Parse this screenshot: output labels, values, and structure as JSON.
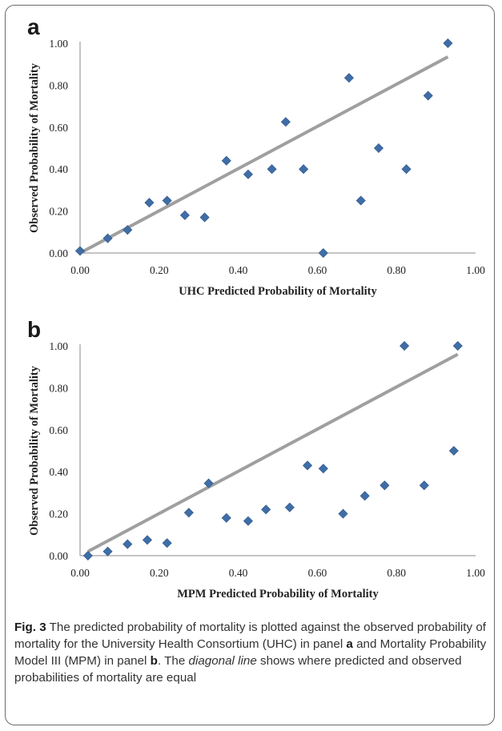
{
  "chart_data": [
    {
      "type": "scatter",
      "panel_label": "a",
      "xlabel": "UHC Predicted Probability of Mortality",
      "ylabel": "Observed Probability of Mortality",
      "xlim": [
        0,
        1
      ],
      "ylim": [
        0,
        1
      ],
      "x_ticks": [
        "0.00",
        "0.20",
        "0.40",
        "0.60",
        "0.80",
        "1.00"
      ],
      "y_ticks": [
        "0.00",
        "0.20",
        "0.40",
        "0.60",
        "0.80",
        "1.00"
      ],
      "grid": false,
      "marker_color": "#3f6ea6",
      "fit_line_color": "#9f9f9f",
      "fit_line": {
        "x": [
          0.0,
          0.93
        ],
        "y": [
          0.0,
          0.935
        ]
      },
      "points": [
        {
          "x": 0.0,
          "y": 0.01
        },
        {
          "x": 0.07,
          "y": 0.07
        },
        {
          "x": 0.12,
          "y": 0.11
        },
        {
          "x": 0.175,
          "y": 0.24
        },
        {
          "x": 0.22,
          "y": 0.25
        },
        {
          "x": 0.265,
          "y": 0.18
        },
        {
          "x": 0.315,
          "y": 0.17
        },
        {
          "x": 0.37,
          "y": 0.44
        },
        {
          "x": 0.425,
          "y": 0.375
        },
        {
          "x": 0.485,
          "y": 0.4
        },
        {
          "x": 0.52,
          "y": 0.625
        },
        {
          "x": 0.565,
          "y": 0.4
        },
        {
          "x": 0.615,
          "y": 0.0
        },
        {
          "x": 0.68,
          "y": 0.835
        },
        {
          "x": 0.71,
          "y": 0.25
        },
        {
          "x": 0.755,
          "y": 0.5
        },
        {
          "x": 0.825,
          "y": 0.4
        },
        {
          "x": 0.88,
          "y": 0.75
        },
        {
          "x": 0.93,
          "y": 1.0
        }
      ]
    },
    {
      "type": "scatter",
      "panel_label": "b",
      "xlabel": "MPM Predicted Probability of Mortality",
      "ylabel": "Observed Probability of Mortality",
      "xlim": [
        0,
        1
      ],
      "ylim": [
        0,
        1
      ],
      "x_ticks": [
        "0.00",
        "0.20",
        "0.40",
        "0.60",
        "0.80",
        "1.00"
      ],
      "y_ticks": [
        "0.00",
        "0.20",
        "0.40",
        "0.60",
        "0.80",
        "1.00"
      ],
      "grid": false,
      "marker_color": "#3f6ea6",
      "fit_line_color": "#9f9f9f",
      "fit_line": {
        "x": [
          0.02,
          0.955
        ],
        "y": [
          0.02,
          0.96
        ]
      },
      "points": [
        {
          "x": 0.02,
          "y": 0.0
        },
        {
          "x": 0.07,
          "y": 0.02
        },
        {
          "x": 0.12,
          "y": 0.055
        },
        {
          "x": 0.17,
          "y": 0.075
        },
        {
          "x": 0.22,
          "y": 0.06
        },
        {
          "x": 0.275,
          "y": 0.205
        },
        {
          "x": 0.325,
          "y": 0.345
        },
        {
          "x": 0.37,
          "y": 0.18
        },
        {
          "x": 0.425,
          "y": 0.165
        },
        {
          "x": 0.47,
          "y": 0.22
        },
        {
          "x": 0.53,
          "y": 0.23
        },
        {
          "x": 0.575,
          "y": 0.43
        },
        {
          "x": 0.615,
          "y": 0.415
        },
        {
          "x": 0.665,
          "y": 0.2
        },
        {
          "x": 0.72,
          "y": 0.285
        },
        {
          "x": 0.77,
          "y": 0.335
        },
        {
          "x": 0.82,
          "y": 1.0
        },
        {
          "x": 0.87,
          "y": 0.335
        },
        {
          "x": 0.945,
          "y": 0.5
        },
        {
          "x": 0.955,
          "y": 1.0
        }
      ]
    }
  ],
  "caption": {
    "fig_label": "Fig. 3",
    "part1": " The predicted probability of mortality is plotted against the observed probability of mortality for the University Health Consortium (UHC) in panel ",
    "panel_a": "a",
    "part2": " and Mortality Probability Model III (MPM) in panel ",
    "panel_b": "b",
    "part3": ". The ",
    "diagonal_term": "diagonal line",
    "part4": " shows where predicted and observed probabilities of mortality are equal"
  }
}
